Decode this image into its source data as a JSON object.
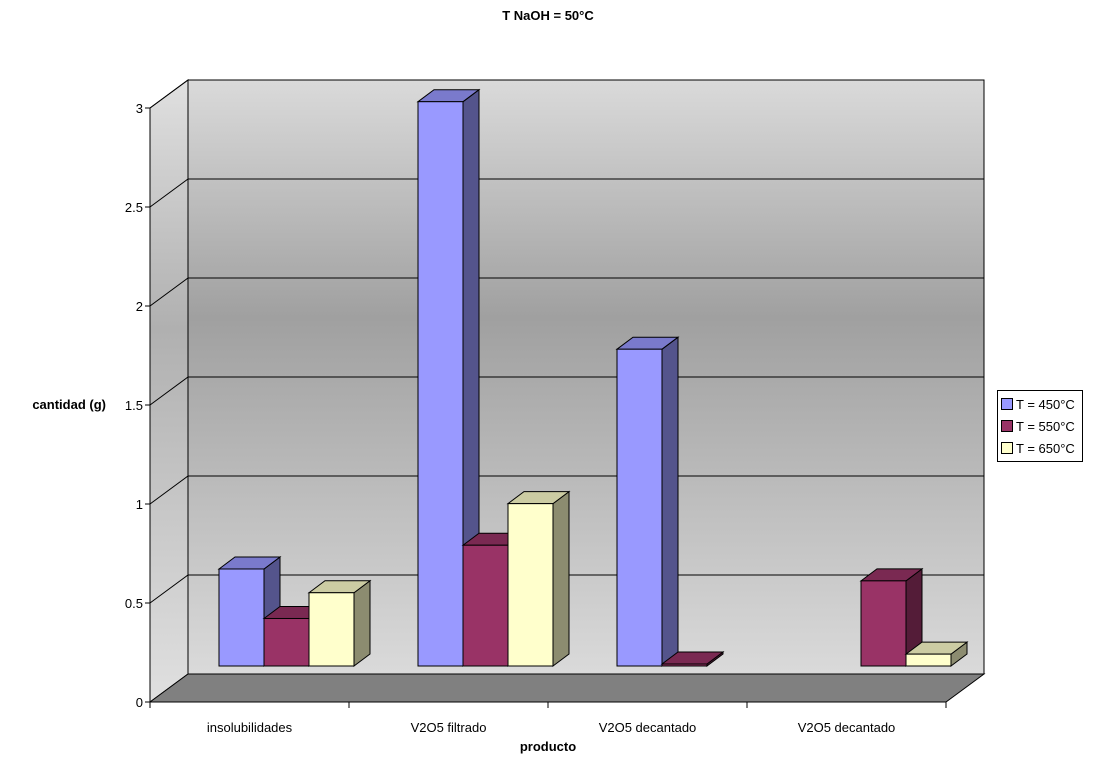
{
  "chart_data": {
    "type": "bar",
    "title": "T NaOH = 50°C",
    "xlabel": "producto",
    "ylabel": "cantidad (g)",
    "categories": [
      "insolubilidades",
      "V2O5 filtrado",
      "V2O5 decantado",
      "V2O5 decantado"
    ],
    "series": [
      {
        "name": "T = 450°C",
        "values": [
          0.49,
          2.85,
          1.6,
          0
        ],
        "color": "#9999ff"
      },
      {
        "name": "T = 550°C",
        "values": [
          0.24,
          0.61,
          0.01,
          0.43
        ],
        "color": "#993366"
      },
      {
        "name": "T = 650°C",
        "values": [
          0.37,
          0.82,
          0,
          0.06
        ],
        "color": "#ffffcc"
      }
    ],
    "yticks": [
      "0",
      "0.5",
      "1",
      "1.5",
      "2",
      "2.5",
      "3"
    ],
    "ylim": [
      0,
      3
    ],
    "grid": true,
    "legend": "right",
    "style": "3d-clustered-column"
  }
}
